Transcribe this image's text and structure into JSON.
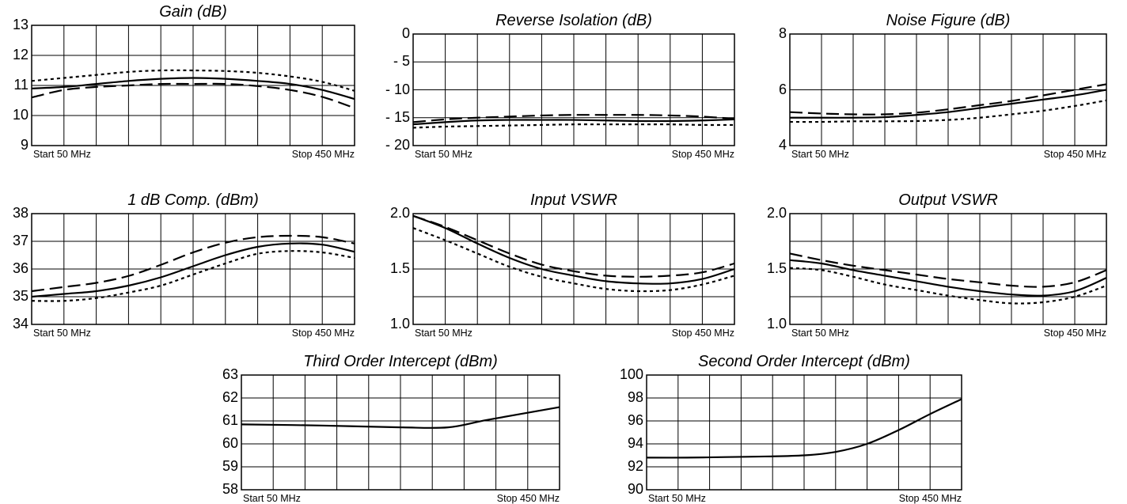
{
  "chart_data": [
    {
      "type": "line",
      "title": "Gain (dB)",
      "start_label": "Start  50 MHz",
      "stop_label": "Stop 450 MHz",
      "yticks": [
        "13",
        "12",
        "11",
        "10",
        "9"
      ],
      "ylim": [
        9,
        13
      ],
      "xlim": [
        50,
        450
      ],
      "grid": true,
      "series": [
        {
          "style": "solid",
          "x": [
            50,
            90,
            130,
            170,
            210,
            250,
            290,
            330,
            370,
            410,
            450
          ],
          "y": [
            10.9,
            10.95,
            11.05,
            11.15,
            11.22,
            11.25,
            11.22,
            11.15,
            11.05,
            10.85,
            10.55
          ]
        },
        {
          "style": "dashed",
          "x": [
            50,
            90,
            130,
            170,
            210,
            250,
            290,
            330,
            370,
            410,
            450
          ],
          "y": [
            10.6,
            10.85,
            10.95,
            11.0,
            11.05,
            11.05,
            11.05,
            10.98,
            10.85,
            10.62,
            10.25
          ]
        },
        {
          "style": "dotted",
          "x": [
            50,
            90,
            130,
            170,
            210,
            250,
            290,
            330,
            370,
            410,
            450
          ],
          "y": [
            11.15,
            11.25,
            11.35,
            11.45,
            11.5,
            11.5,
            11.48,
            11.42,
            11.3,
            11.12,
            10.82
          ]
        }
      ]
    },
    {
      "type": "line",
      "title": "Reverse Isolation (dB)",
      "start_label": "Start  50 MHz",
      "stop_label": "Stop 450 MHz",
      "yticks": [
        "0",
        "- 5",
        "- 10",
        "- 15",
        "- 20"
      ],
      "ylim": [
        -20,
        0
      ],
      "xlim": [
        50,
        450
      ],
      "grid": true,
      "series": [
        {
          "style": "solid",
          "x": [
            50,
            90,
            130,
            170,
            210,
            250,
            290,
            330,
            370,
            410,
            450
          ],
          "y": [
            -16.2,
            -15.8,
            -15.5,
            -15.4,
            -15.4,
            -15.4,
            -15.5,
            -15.6,
            -15.6,
            -15.5,
            -15.3
          ]
        },
        {
          "style": "dashed",
          "x": [
            50,
            90,
            130,
            170,
            210,
            250,
            290,
            330,
            370,
            410,
            450
          ],
          "y": [
            -15.8,
            -15.3,
            -15.0,
            -14.8,
            -14.6,
            -14.5,
            -14.5,
            -14.5,
            -14.6,
            -14.8,
            -15.2
          ]
        },
        {
          "style": "dotted",
          "x": [
            50,
            90,
            130,
            170,
            210,
            250,
            290,
            330,
            370,
            410,
            450
          ],
          "y": [
            -16.8,
            -16.6,
            -16.5,
            -16.4,
            -16.3,
            -16.2,
            -16.2,
            -16.2,
            -16.2,
            -16.3,
            -16.3
          ]
        }
      ]
    },
    {
      "type": "line",
      "title": "Noise Figure (dB)",
      "start_label": "Start 50 MHz",
      "stop_label": "Stop 450 MHz",
      "yticks": [
        "8",
        "6",
        "4"
      ],
      "ylim": [
        4,
        8
      ],
      "xlim": [
        50,
        450
      ],
      "grid": true,
      "series": [
        {
          "style": "solid",
          "x": [
            50,
            90,
            130,
            170,
            210,
            250,
            290,
            330,
            370,
            410,
            450
          ],
          "y": [
            5.0,
            5.0,
            5.0,
            5.02,
            5.1,
            5.2,
            5.35,
            5.5,
            5.65,
            5.8,
            6.0
          ]
        },
        {
          "style": "dashed",
          "x": [
            50,
            90,
            130,
            170,
            210,
            250,
            290,
            330,
            370,
            410,
            450
          ],
          "y": [
            5.2,
            5.15,
            5.12,
            5.12,
            5.18,
            5.3,
            5.45,
            5.6,
            5.8,
            6.0,
            6.2
          ]
        },
        {
          "style": "dotted",
          "x": [
            50,
            90,
            130,
            170,
            210,
            250,
            290,
            330,
            370,
            410,
            450
          ],
          "y": [
            4.85,
            4.85,
            4.87,
            4.87,
            4.88,
            4.92,
            5.0,
            5.12,
            5.25,
            5.42,
            5.62
          ]
        }
      ]
    },
    {
      "type": "line",
      "title": "1 dB Comp. (dBm)",
      "start_label": "Start 50 MHz",
      "stop_label": "Stop 450 MHz",
      "yticks": [
        "38",
        "37",
        "36",
        "35",
        "34"
      ],
      "ylim": [
        34,
        38
      ],
      "xlim": [
        50,
        450
      ],
      "grid": true,
      "series": [
        {
          "style": "solid",
          "x": [
            50,
            90,
            130,
            170,
            210,
            250,
            290,
            330,
            370,
            410,
            450
          ],
          "y": [
            35.0,
            35.1,
            35.2,
            35.4,
            35.7,
            36.1,
            36.5,
            36.8,
            36.92,
            36.88,
            36.62
          ]
        },
        {
          "style": "dashed",
          "x": [
            50,
            90,
            130,
            170,
            210,
            250,
            290,
            330,
            370,
            410,
            450
          ],
          "y": [
            35.2,
            35.35,
            35.5,
            35.75,
            36.15,
            36.6,
            36.95,
            37.15,
            37.2,
            37.15,
            36.92
          ]
        },
        {
          "style": "dotted",
          "x": [
            50,
            90,
            130,
            170,
            210,
            250,
            290,
            330,
            370,
            410,
            450
          ],
          "y": [
            34.85,
            34.85,
            34.95,
            35.15,
            35.4,
            35.8,
            36.2,
            36.55,
            36.65,
            36.6,
            36.4
          ]
        }
      ]
    },
    {
      "type": "line",
      "title": "Input VSWR",
      "start_label": "Start 50 MHz",
      "stop_label": "Stop 450 MHz",
      "yticks": [
        "2.0",
        "1.5",
        "1.0"
      ],
      "ylim": [
        1.0,
        2.0
      ],
      "xlim": [
        50,
        450
      ],
      "grid": true,
      "series": [
        {
          "style": "solid",
          "x": [
            50,
            90,
            130,
            170,
            210,
            250,
            290,
            330,
            370,
            410,
            450
          ],
          "y": [
            1.98,
            1.87,
            1.73,
            1.6,
            1.5,
            1.44,
            1.39,
            1.37,
            1.37,
            1.41,
            1.5
          ]
        },
        {
          "style": "dashed",
          "x": [
            50,
            90,
            130,
            170,
            210,
            250,
            290,
            330,
            370,
            410,
            450
          ],
          "y": [
            1.98,
            1.88,
            1.76,
            1.64,
            1.54,
            1.48,
            1.44,
            1.43,
            1.44,
            1.47,
            1.55
          ]
        },
        {
          "style": "dotted",
          "x": [
            50,
            90,
            130,
            170,
            210,
            250,
            290,
            330,
            370,
            410,
            450
          ],
          "y": [
            1.87,
            1.76,
            1.64,
            1.52,
            1.43,
            1.37,
            1.32,
            1.3,
            1.31,
            1.36,
            1.44
          ]
        }
      ]
    },
    {
      "type": "line",
      "title": "Output VSWR",
      "start_label": "Start 50 MHz",
      "stop_label": "Stop 450 MHz",
      "yticks": [
        "2.0",
        "1.5",
        "1.0"
      ],
      "ylim": [
        1.0,
        2.0
      ],
      "xlim": [
        50,
        450
      ],
      "grid": true,
      "series": [
        {
          "style": "solid",
          "x": [
            50,
            90,
            130,
            170,
            210,
            250,
            290,
            330,
            370,
            410,
            450
          ],
          "y": [
            1.58,
            1.55,
            1.49,
            1.44,
            1.39,
            1.34,
            1.3,
            1.27,
            1.26,
            1.3,
            1.42
          ]
        },
        {
          "style": "dashed",
          "x": [
            50,
            90,
            130,
            170,
            210,
            250,
            290,
            330,
            370,
            410,
            450
          ],
          "y": [
            1.64,
            1.58,
            1.53,
            1.49,
            1.45,
            1.41,
            1.38,
            1.35,
            1.34,
            1.38,
            1.49
          ]
        },
        {
          "style": "dotted",
          "x": [
            50,
            90,
            130,
            170,
            210,
            250,
            290,
            330,
            370,
            410,
            450
          ],
          "y": [
            1.51,
            1.49,
            1.43,
            1.36,
            1.31,
            1.26,
            1.22,
            1.19,
            1.2,
            1.25,
            1.35
          ]
        }
      ]
    },
    {
      "type": "line",
      "title": "Third Order Intercept (dBm)",
      "start_label": "Start 50 MHz",
      "stop_label": "Stop 450 MHz",
      "yticks": [
        "63",
        "62",
        "61",
        "60",
        "59",
        "58"
      ],
      "ylim": [
        58,
        63
      ],
      "xlim": [
        50,
        450
      ],
      "grid": true,
      "series": [
        {
          "style": "solid",
          "x": [
            50,
            150,
            250,
            310,
            360,
            450
          ],
          "y": [
            60.85,
            60.8,
            60.72,
            60.72,
            61.05,
            61.6
          ]
        }
      ]
    },
    {
      "type": "line",
      "title": "Second Order Intercept (dBm)",
      "start_label": "Start 50 MHz",
      "stop_label": "Stop 450 MHz",
      "yticks": [
        "100",
        "98",
        "96",
        "94",
        "92",
        "90"
      ],
      "ylim": [
        90,
        100
      ],
      "xlim": [
        50,
        450
      ],
      "grid": true,
      "series": [
        {
          "style": "solid",
          "x": [
            50,
            100,
            150,
            200,
            250,
            290,
            330,
            370,
            410,
            450
          ],
          "y": [
            92.8,
            92.8,
            92.85,
            92.9,
            93.0,
            93.3,
            94.0,
            95.2,
            96.6,
            97.9
          ]
        }
      ]
    }
  ]
}
